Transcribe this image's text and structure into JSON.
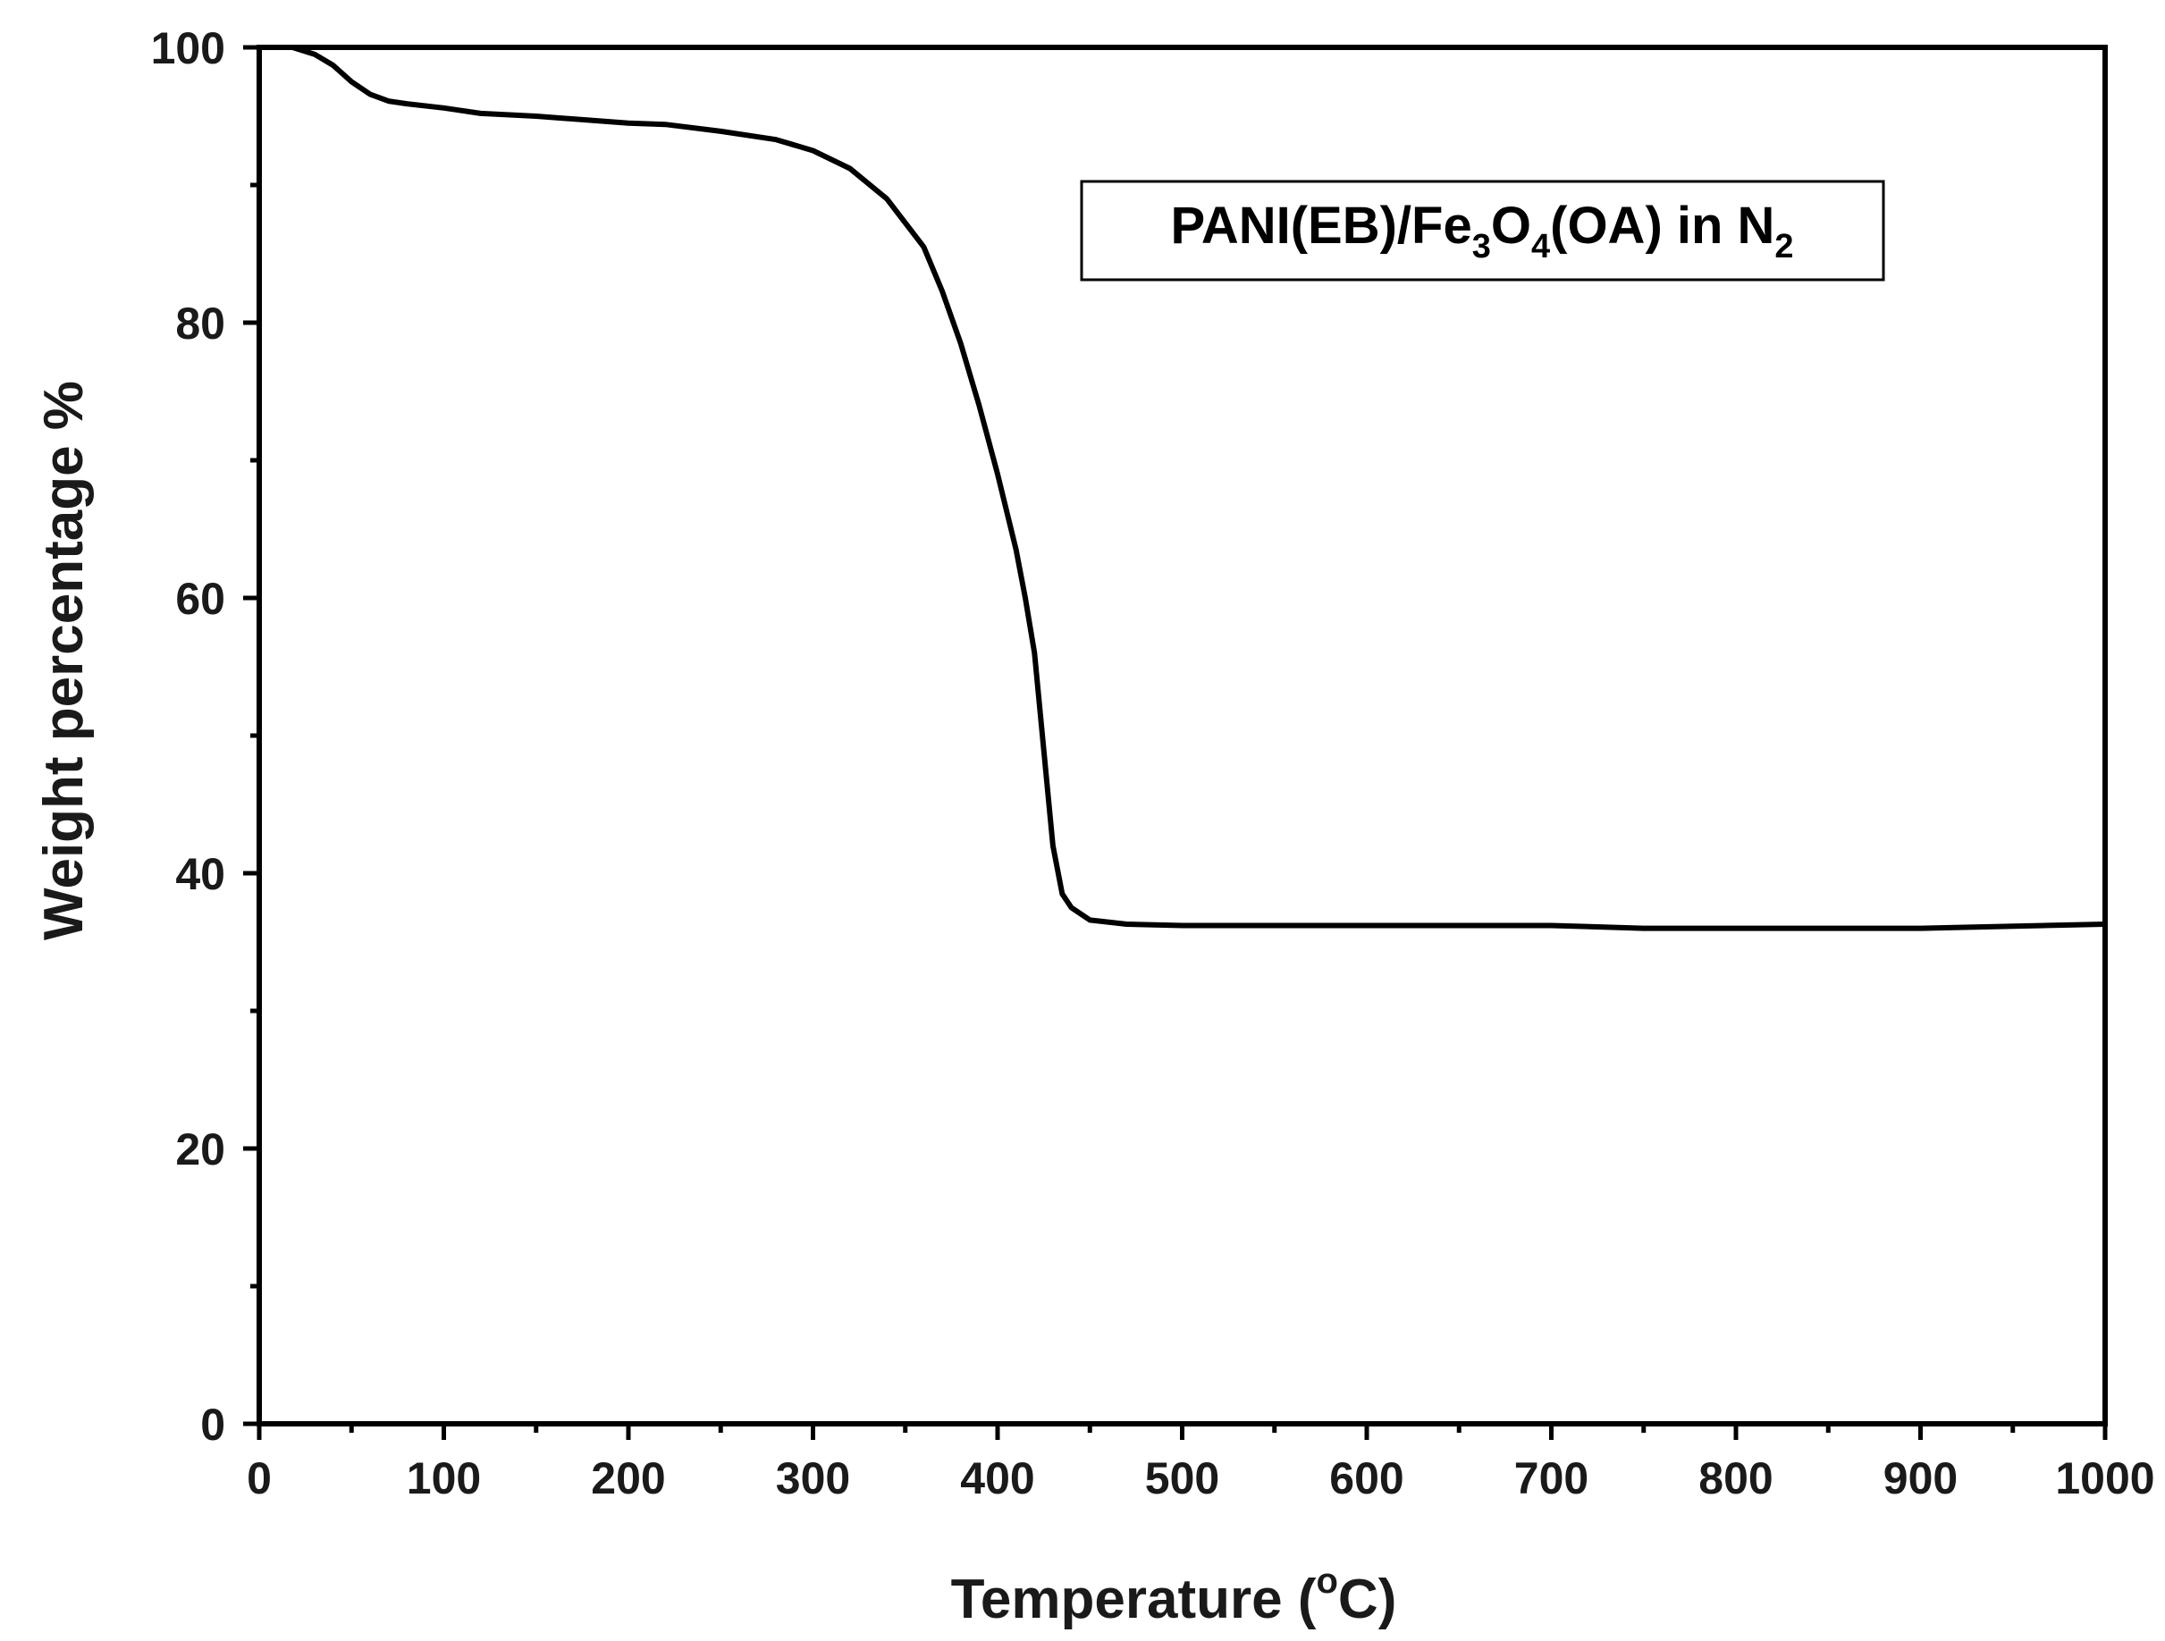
{
  "chart_data": {
    "type": "line",
    "xlabel": {
      "main": "Temperature (",
      "sup": "o",
      "end": "C)"
    },
    "ylabel": "Weight percentage  %",
    "xlim": [
      0,
      1000
    ],
    "ylim": [
      0,
      100
    ],
    "x_ticks": [
      "0",
      "100",
      "200",
      "300",
      "400",
      "500",
      "600",
      "700",
      "800",
      "900",
      "1000"
    ],
    "y_ticks": [
      "0",
      "20",
      "40",
      "60",
      "80",
      "100"
    ],
    "grid": false,
    "legend": {
      "position": "top-right",
      "parts": [
        {
          "t": "PANI(EB)/Fe",
          "sub": false
        },
        {
          "t": "3",
          "sub": true
        },
        {
          "t": "O",
          "sub": false
        },
        {
          "t": "4",
          "sub": true
        },
        {
          "t": "(OA) in N",
          "sub": false
        },
        {
          "t": "2",
          "sub": true
        }
      ]
    },
    "series": [
      {
        "color": "#000000",
        "x": [
          18,
          30,
          40,
          50,
          60,
          70,
          80,
          100,
          120,
          150,
          200,
          220,
          250,
          280,
          300,
          320,
          340,
          360,
          370,
          380,
          390,
          400,
          410,
          415,
          420,
          425,
          430,
          435,
          440,
          450,
          470,
          500,
          600,
          700,
          750,
          800,
          900,
          1000
        ],
        "y": [
          100,
          99.5,
          98.7,
          97.5,
          96.6,
          96.1,
          95.9,
          95.6,
          95.2,
          95.0,
          94.5,
          94.4,
          93.9,
          93.3,
          92.5,
          91.2,
          89.0,
          85.5,
          82.3,
          78.5,
          74.0,
          69.0,
          63.5,
          60.0,
          56.0,
          49.0,
          42.0,
          38.5,
          37.5,
          36.6,
          36.3,
          36.2,
          36.2,
          36.2,
          36.0,
          36.0,
          36.0,
          36.3
        ]
      }
    ]
  }
}
